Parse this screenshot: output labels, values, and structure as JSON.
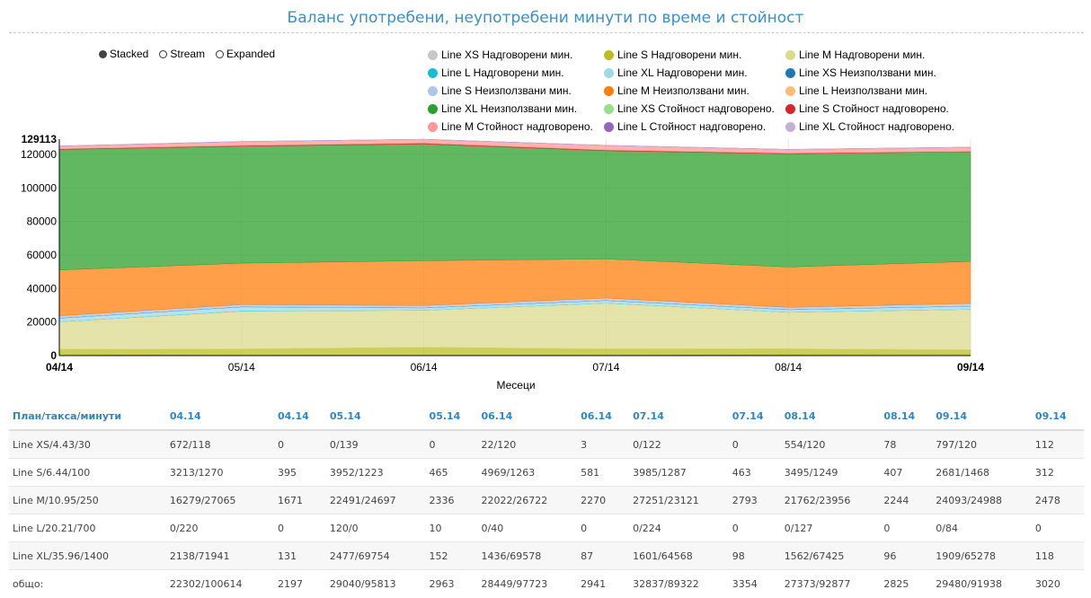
{
  "title": "Баланс употребени, неупотребени минути по време и стойност",
  "controls": [
    {
      "label": "Stacked",
      "selected": true
    },
    {
      "label": "Stream",
      "selected": false
    },
    {
      "label": "Expanded",
      "selected": false
    }
  ],
  "chart_data": {
    "type": "area",
    "title": "Баланс употребени, неупотребени минути по време и стойност",
    "xlabel": "Месеци",
    "ylabel": "",
    "categories": [
      "04/14",
      "05/14",
      "06/14",
      "07/14",
      "08/14",
      "09/14"
    ],
    "y_ticks": [
      0,
      20000,
      40000,
      60000,
      80000,
      100000,
      120000
    ],
    "y_max_label": "129113",
    "ylim": [
      0,
      129113
    ],
    "series": [
      {
        "name": "Line XS Надговорени мин.",
        "color": "#c7c7c7",
        "values": [
          672,
          0,
          22,
          0,
          554,
          797
        ]
      },
      {
        "name": "Line S Надговорени мин.",
        "color": "#bcbd22",
        "values": [
          3213,
          3952,
          4969,
          3985,
          3495,
          2681
        ]
      },
      {
        "name": "Line M Надговорени мин.",
        "color": "#dbdb8d",
        "values": [
          16279,
          22491,
          22022,
          27251,
          21762,
          24093
        ]
      },
      {
        "name": "Line L Надговорени мин.",
        "color": "#17becf",
        "values": [
          0,
          120,
          0,
          0,
          0,
          0
        ]
      },
      {
        "name": "Line XL Надговорени мин.",
        "color": "#9edae5",
        "values": [
          2138,
          2477,
          1436,
          1601,
          1562,
          1909
        ]
      },
      {
        "name": "Line XS Неизползвани мин.",
        "color": "#1f77b4",
        "values": [
          118,
          139,
          120,
          122,
          120,
          120
        ]
      },
      {
        "name": "Line S Неизползвани мин.",
        "color": "#aec7e8",
        "values": [
          1270,
          1223,
          1263,
          1287,
          1249,
          1468
        ]
      },
      {
        "name": "Line M Неизползвани мин.",
        "color": "#ff7f0e",
        "values": [
          27065,
          24697,
          26722,
          23121,
          23956,
          24988
        ]
      },
      {
        "name": "Line L Неизползвани мин.",
        "color": "#ffbb78",
        "values": [
          220,
          0,
          40,
          224,
          127,
          84
        ]
      },
      {
        "name": "Line XL Неизползвани мин.",
        "color": "#2ca02c",
        "values": [
          71941,
          69754,
          69578,
          64568,
          67425,
          65278
        ]
      },
      {
        "name": "Line XS Стойност надговорено.",
        "color": "#98df8a",
        "values": [
          0,
          0,
          3,
          0,
          78,
          112
        ]
      },
      {
        "name": "Line S Стойност надговорено.",
        "color": "#d62728",
        "values": [
          395,
          465,
          581,
          463,
          407,
          312
        ]
      },
      {
        "name": "Line M Стойност надговорено.",
        "color": "#ff9896",
        "values": [
          1671,
          2336,
          2270,
          2793,
          2244,
          2478
        ]
      },
      {
        "name": "Line L Стойност надговорено.",
        "color": "#9467bd",
        "values": [
          0,
          10,
          0,
          0,
          0,
          0
        ]
      },
      {
        "name": "Line XL Стойност надговорено.",
        "color": "#c5b0d5",
        "values": [
          131,
          152,
          87,
          98,
          96,
          118
        ]
      }
    ]
  },
  "table": {
    "headers": [
      "План/такса/минути",
      "04.14",
      "04.14",
      "05.14",
      "05.14",
      "06.14",
      "06.14",
      "07.14",
      "07.14",
      "08.14",
      "08.14",
      "09.14",
      "09.14"
    ],
    "rows": [
      [
        "Line XS/4.43/30",
        "672/118",
        "0",
        "0/139",
        "0",
        "22/120",
        "3",
        "0/122",
        "0",
        "554/120",
        "78",
        "797/120",
        "112"
      ],
      [
        "Line S/6.44/100",
        "3213/1270",
        "395",
        "3952/1223",
        "465",
        "4969/1263",
        "581",
        "3985/1287",
        "463",
        "3495/1249",
        "407",
        "2681/1468",
        "312"
      ],
      [
        "Line M/10.95/250",
        "16279/27065",
        "1671",
        "22491/24697",
        "2336",
        "22022/26722",
        "2270",
        "27251/23121",
        "2793",
        "21762/23956",
        "2244",
        "24093/24988",
        "2478"
      ],
      [
        "Line L/20.21/700",
        "0/220",
        "0",
        "120/0",
        "10",
        "0/40",
        "0",
        "0/224",
        "0",
        "0/127",
        "0",
        "0/84",
        "0"
      ],
      [
        "Line XL/35.96/1400",
        "2138/71941",
        "131",
        "2477/69754",
        "152",
        "1436/69578",
        "87",
        "1601/64568",
        "98",
        "1562/67425",
        "96",
        "1909/65278",
        "118"
      ]
    ],
    "total": [
      "общо:",
      "22302/100614",
      "2197",
      "29040/95813",
      "2963",
      "28449/97723",
      "2941",
      "32837/89322",
      "3354",
      "27373/92877",
      "2825",
      "29480/91938",
      "3020"
    ]
  }
}
